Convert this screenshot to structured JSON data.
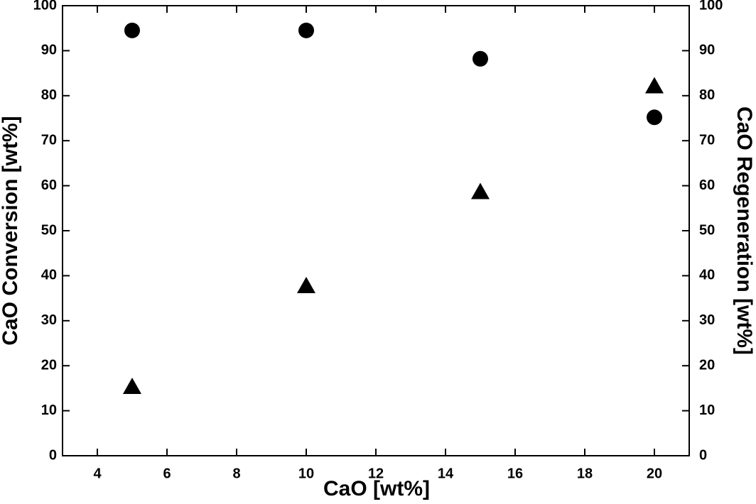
{
  "chart_data": {
    "type": "scatter",
    "x_label": "CaO [wt%]",
    "y_label": "CaO Conversion [wt%]",
    "y2_label": "CaO Regeneration [wt%]",
    "x": [
      5,
      10,
      15,
      20
    ],
    "series": [
      {
        "color": "#000000",
        "marker": "circle",
        "values": [
          94.5,
          94.5,
          88.2,
          75.2
        ]
      },
      {
        "color": "#000000",
        "marker": "triangle",
        "axis": "y2",
        "values": [
          15.3,
          37.7,
          58.6,
          82.1
        ]
      }
    ],
    "xlim": [
      3,
      21
    ],
    "xticks": [
      4,
      6,
      8,
      10,
      12,
      14,
      16,
      18,
      20
    ],
    "ylim": [
      0,
      100
    ],
    "yticks": [
      0,
      10,
      20,
      30,
      40,
      50,
      60,
      70,
      80,
      90,
      100
    ],
    "y2lim": [
      0,
      100
    ],
    "y2ticks": [
      0,
      10,
      20,
      30,
      40,
      50,
      60,
      70,
      80,
      90,
      100
    ],
    "grid": false
  }
}
